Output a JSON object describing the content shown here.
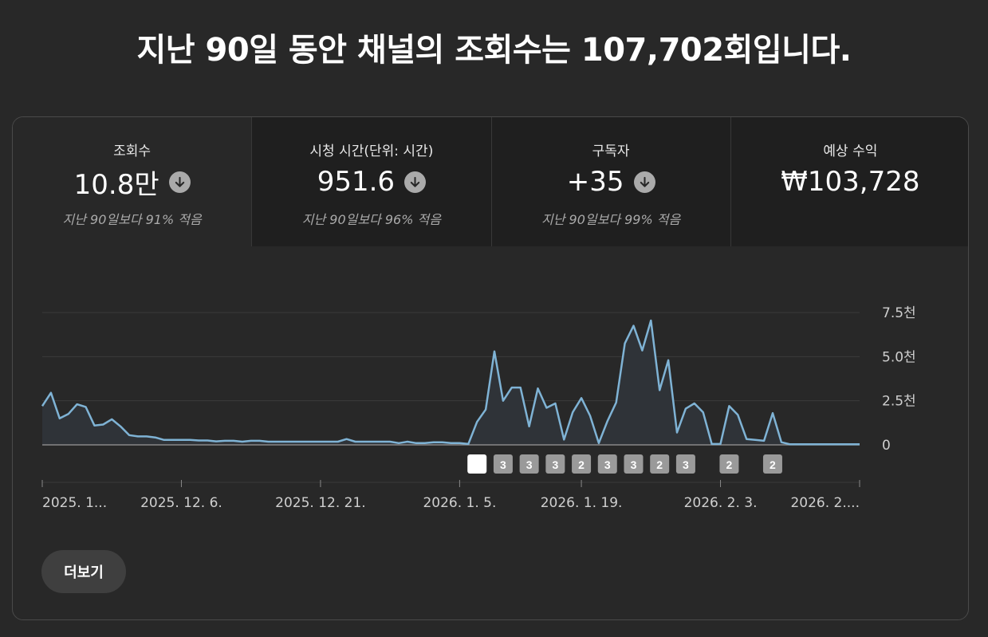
{
  "headline": "지난 90일 동안 채널의 조회수는 107,702회입니다.",
  "tabs": [
    {
      "label": "조회수",
      "value": "10.8만",
      "compare": "지난 90일보다 91% 적음",
      "trend_icon": "arrow-down-circle-icon",
      "active": true
    },
    {
      "label": "시청 시간(단위: 시간)",
      "value": "951.6",
      "compare": "지난 90일보다 96% 적음",
      "trend_icon": "arrow-down-circle-icon",
      "active": false
    },
    {
      "label": "구독자",
      "value": "+35",
      "compare": "지난 90일보다 99% 적음",
      "trend_icon": "arrow-down-circle-icon",
      "active": false
    },
    {
      "label": "예상 수익",
      "value": "₩103,728",
      "compare": "",
      "trend_icon": "",
      "active": false
    }
  ],
  "more_button": "더보기",
  "colors": {
    "line": "#7fb3d5",
    "area": "#2f3338",
    "grid": "#3a3a3a",
    "baseline": "#888888",
    "marker_active": "#ffffff",
    "marker": "#9a9a9a"
  },
  "chart_data": {
    "type": "area",
    "title": "",
    "xlabel": "",
    "ylabel": "",
    "ylim": [
      0,
      7500
    ],
    "yticks": [
      {
        "v": 0,
        "label": "0"
      },
      {
        "v": 2500,
        "label": "2.5천"
      },
      {
        "v": 5000,
        "label": "5.0천"
      },
      {
        "v": 7500,
        "label": "7.5천"
      }
    ],
    "xtick_labels": [
      "2025. 1...",
      "2025. 12. 6.",
      "2025. 12. 21.",
      "2026. 1. 5.",
      "2026. 1. 19.",
      "2026. 2. 3.",
      "2026. 2...."
    ],
    "xtick_index": [
      0,
      16,
      32,
      48,
      62,
      78,
      94
    ],
    "values": [
      2200,
      2950,
      1500,
      1750,
      2300,
      2150,
      1100,
      1150,
      1450,
      1050,
      550,
      480,
      480,
      420,
      280,
      280,
      280,
      280,
      250,
      250,
      200,
      230,
      230,
      180,
      230,
      230,
      180,
      180,
      180,
      180,
      180,
      180,
      180,
      180,
      180,
      330,
      180,
      180,
      180,
      180,
      180,
      100,
      180,
      100,
      100,
      150,
      150,
      100,
      100,
      50,
      1300,
      2000,
      5300,
      2500,
      3250,
      3250,
      1050,
      3200,
      2100,
      2350,
      300,
      1850,
      2650,
      1650,
      100,
      1350,
      2400,
      5750,
      6750,
      5350,
      7050,
      3100,
      4800,
      700,
      2050,
      2350,
      1850,
      50,
      50,
      2200,
      1700,
      330,
      280,
      230,
      1800,
      150,
      30,
      30,
      30,
      30,
      30,
      30,
      30,
      30,
      30
    ],
    "markers": [
      {
        "index": 50,
        "label": "",
        "active": true
      },
      {
        "index": 53,
        "label": "3",
        "active": false
      },
      {
        "index": 56,
        "label": "3",
        "active": false
      },
      {
        "index": 59,
        "label": "3",
        "active": false
      },
      {
        "index": 62,
        "label": "2",
        "active": false
      },
      {
        "index": 65,
        "label": "3",
        "active": false
      },
      {
        "index": 68,
        "label": "3",
        "active": false
      },
      {
        "index": 71,
        "label": "2",
        "active": false
      },
      {
        "index": 74,
        "label": "3",
        "active": false
      },
      {
        "index": 79,
        "label": "2",
        "active": false
      },
      {
        "index": 84,
        "label": "2",
        "active": false
      }
    ],
    "grid": true
  }
}
